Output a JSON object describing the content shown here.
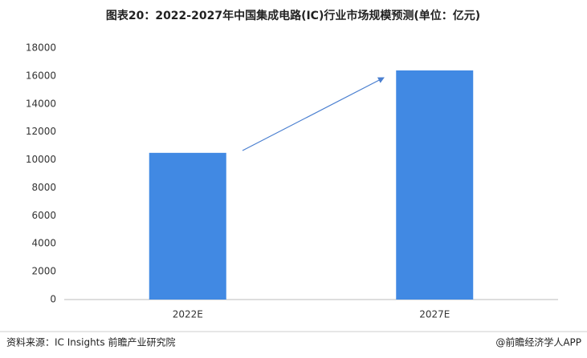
{
  "chart_data": {
    "type": "bar",
    "title": "图表20：2022-2027年中国集成电路(IC)行业市场规模预测(单位：亿元)",
    "categories": [
      "2022E",
      "2027E"
    ],
    "values": [
      10500,
      16400
    ],
    "color": "#4189e3",
    "ylim": [
      0,
      18000
    ],
    "yticks": [
      0,
      2000,
      4000,
      6000,
      8000,
      10000,
      12000,
      14000,
      16000,
      18000
    ],
    "grid": false,
    "source": "资料来源：IC Insights 前瞻产业研究院",
    "credit": "@前瞻经济学人APP"
  }
}
